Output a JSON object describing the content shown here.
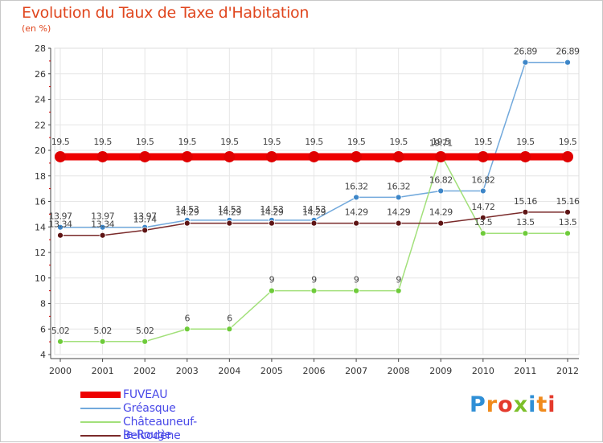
{
  "title": "Evolution du Taux de Taxe d'Habitation",
  "subtitle": "(en %)",
  "brand": {
    "text": "Proxiti",
    "letters": [
      {
        "ch": "P",
        "color": "#2f8fd6"
      },
      {
        "ch": "r",
        "color": "#f08a1c"
      },
      {
        "ch": "o",
        "color": "#e43a2c"
      },
      {
        "ch": "x",
        "color": "#7cbf2a"
      },
      {
        "ch": "i",
        "color": "#2f8fd6"
      },
      {
        "ch": "t",
        "color": "#f08a1c"
      },
      {
        "ch": "i",
        "color": "#e43a2c"
      }
    ]
  },
  "chart_data": {
    "type": "line",
    "title": "Evolution du Taux de Taxe d'Habitation",
    "ylabel": "(en %)",
    "xlabel": "",
    "x": [
      "2000",
      "2001",
      "2002",
      "2003",
      "2004",
      "2005",
      "2006",
      "2007",
      "2008",
      "2009",
      "2010",
      "2011",
      "2012"
    ],
    "ylim": [
      4,
      28
    ],
    "yticks": [
      4,
      6,
      8,
      10,
      12,
      14,
      16,
      18,
      20,
      22,
      24,
      26,
      28
    ],
    "grid": true,
    "legend_position": "bottom-left",
    "series": [
      {
        "name": "FUVEAU",
        "color": "#ee0000",
        "marker_color": "#e00000",
        "values": [
          19.5,
          19.5,
          19.5,
          19.5,
          19.5,
          19.5,
          19.5,
          19.5,
          19.5,
          19.5,
          19.5,
          19.5,
          19.5
        ],
        "labels": [
          "19.5",
          "19.5",
          "19.5",
          "19.5",
          "19.5",
          "19.5",
          "19.5",
          "19.5",
          "19.5",
          "19.5",
          "19.5",
          "19.5",
          "19.5"
        ]
      },
      {
        "name": "Gréasque",
        "color": "#72a9dc",
        "marker_color": "#3d86c8",
        "values": [
          13.97,
          13.97,
          13.97,
          14.53,
          14.53,
          14.53,
          14.53,
          16.32,
          16.32,
          16.82,
          16.82,
          26.89,
          26.89
        ],
        "labels": [
          "13.97",
          "13.97",
          "13.97",
          "14.53",
          "14.53",
          "14.53",
          "14.53",
          "16.32",
          "16.32",
          "16.82",
          "16.82",
          "26.89",
          "26.89"
        ]
      },
      {
        "name": "Châteauneuf-le-Rouge",
        "color": "#a2e07a",
        "marker_color": "#6ecb3a",
        "values": [
          5.02,
          5.02,
          5.02,
          6,
          6,
          9,
          9,
          9,
          9,
          19.71,
          13.5,
          13.5,
          13.5
        ],
        "labels": [
          "5.02",
          "5.02",
          "5.02",
          "6",
          "6",
          "9",
          "9",
          "9",
          "9",
          "19.71",
          "13.5",
          "13.5",
          "13.5"
        ]
      },
      {
        "name": "Belcodène",
        "color": "#7a2a2a",
        "marker_color": "#5e1414",
        "values": [
          13.34,
          13.34,
          13.74,
          14.29,
          14.29,
          14.29,
          14.29,
          14.29,
          14.29,
          14.29,
          14.72,
          15.16,
          15.16
        ],
        "labels": [
          "13.34",
          "13.34",
          "13.74",
          "14.29",
          "14.29",
          "14.29",
          "14.29",
          "14.29",
          "14.29",
          "14.29",
          "14.72",
          "15.16",
          "15.16"
        ]
      }
    ]
  }
}
